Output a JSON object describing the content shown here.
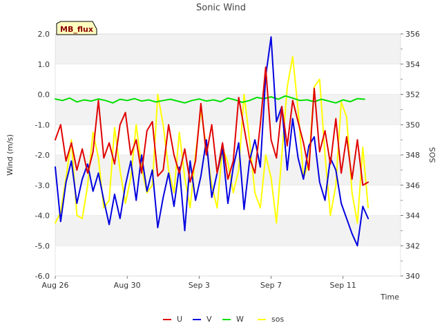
{
  "chart_data": {
    "type": "line",
    "title": "Sonic Wind",
    "badge": "MB_flux",
    "xlabel": "Time",
    "ylabel": "Wind (m/s)",
    "y2label": "SOS",
    "xlim": [
      0,
      19.2
    ],
    "ylim": [
      -6.0,
      2.0
    ],
    "y2lim": [
      340,
      356
    ],
    "x_ticks": [
      {
        "value": 0,
        "label": "Aug 26"
      },
      {
        "value": 4,
        "label": "Aug 30"
      },
      {
        "value": 8,
        "label": "Sep 3"
      },
      {
        "value": 12,
        "label": "Sep 7"
      },
      {
        "value": 16,
        "label": "Sep 11"
      }
    ],
    "y_ticks": [
      {
        "value": 2.0,
        "label": "2.0"
      },
      {
        "value": 1.0,
        "label": "1.0"
      },
      {
        "value": 0.0,
        "label": "0.0"
      },
      {
        "value": -1.0,
        "label": "-1.0"
      },
      {
        "value": -2.0,
        "label": "-2.0"
      },
      {
        "value": -3.0,
        "label": "-3.0"
      },
      {
        "value": -4.0,
        "label": "-4.0"
      },
      {
        "value": -5.0,
        "label": "-5.0"
      },
      {
        "value": -6.0,
        "label": "-6.0"
      }
    ],
    "y2_ticks": [
      {
        "value": 356,
        "label": "356"
      },
      {
        "value": 354,
        "label": "354"
      },
      {
        "value": 352,
        "label": "352"
      },
      {
        "value": 350,
        "label": "350"
      },
      {
        "value": 348,
        "label": "348"
      },
      {
        "value": 346,
        "label": "346"
      },
      {
        "value": 344,
        "label": "344"
      },
      {
        "value": 342,
        "label": "342"
      },
      {
        "value": 340,
        "label": "340"
      }
    ],
    "series": [
      {
        "name": "U",
        "color": "#e00000",
        "axis": "left",
        "x": [
          0.0,
          0.3,
          0.6,
          0.9,
          1.2,
          1.5,
          1.8,
          2.1,
          2.4,
          2.7,
          3.0,
          3.3,
          3.6,
          3.9,
          4.2,
          4.5,
          4.8,
          5.1,
          5.4,
          5.7,
          6.0,
          6.3,
          6.6,
          6.9,
          7.2,
          7.5,
          7.8,
          8.1,
          8.4,
          8.7,
          9.0,
          9.3,
          9.6,
          9.9,
          10.2,
          10.5,
          10.8,
          11.1,
          11.4,
          11.7,
          12.0,
          12.3,
          12.6,
          12.9,
          13.2,
          13.5,
          13.8,
          14.1,
          14.4,
          14.7,
          15.0,
          15.3,
          15.6,
          15.9,
          16.2,
          16.5,
          16.8,
          17.1,
          17.4
        ],
        "values": [
          -1.5,
          -1.0,
          -2.2,
          -1.6,
          -2.5,
          -1.8,
          -2.6,
          -1.9,
          -0.2,
          -2.1,
          -1.6,
          -2.3,
          -1.0,
          -0.6,
          -2.0,
          -1.5,
          -2.6,
          -1.2,
          -0.9,
          -2.7,
          -2.5,
          -1.0,
          -2.0,
          -2.6,
          -1.8,
          -2.9,
          -2.2,
          -0.3,
          -2.0,
          -1.0,
          -2.6,
          -1.6,
          -2.8,
          -2.2,
          -0.1,
          -1.1,
          -2.1,
          -2.6,
          -1.0,
          0.9,
          -1.5,
          -2.1,
          -0.4,
          -1.7,
          -0.2,
          -0.9,
          -1.6,
          -2.5,
          0.2,
          -1.9,
          -1.2,
          -2.3,
          -0.8,
          -2.6,
          -1.4,
          -2.8,
          -1.5,
          -3.0,
          -2.9
        ]
      },
      {
        "name": "V",
        "color": "#0000e0",
        "axis": "left",
        "x": [
          0.0,
          0.3,
          0.6,
          0.9,
          1.2,
          1.5,
          1.8,
          2.1,
          2.4,
          2.7,
          3.0,
          3.3,
          3.6,
          3.9,
          4.2,
          4.5,
          4.8,
          5.1,
          5.4,
          5.7,
          6.0,
          6.3,
          6.6,
          6.9,
          7.2,
          7.5,
          7.8,
          8.1,
          8.4,
          8.7,
          9.0,
          9.3,
          9.6,
          9.9,
          10.2,
          10.5,
          10.8,
          11.1,
          11.4,
          11.7,
          12.0,
          12.3,
          12.6,
          12.9,
          13.2,
          13.5,
          13.8,
          14.1,
          14.4,
          14.7,
          15.0,
          15.3,
          15.6,
          15.9,
          16.2,
          16.5,
          16.8,
          17.1,
          17.4
        ],
        "values": [
          -2.4,
          -4.2,
          -2.9,
          -2.2,
          -3.6,
          -2.8,
          -2.3,
          -3.2,
          -2.6,
          -3.5,
          -4.3,
          -3.3,
          -4.1,
          -3.0,
          -2.2,
          -3.5,
          -2.0,
          -3.2,
          -2.5,
          -4.4,
          -3.4,
          -2.6,
          -3.7,
          -2.4,
          -4.5,
          -2.2,
          -3.5,
          -2.7,
          -1.5,
          -3.4,
          -2.6,
          -1.8,
          -3.6,
          -2.4,
          -1.6,
          -3.8,
          -2.2,
          -1.5,
          -2.4,
          0.6,
          1.9,
          -0.9,
          -0.4,
          -2.5,
          -0.8,
          -2.1,
          -2.8,
          -1.7,
          -1.4,
          -2.9,
          -3.5,
          -2.1,
          -2.5,
          -3.6,
          -4.1,
          -4.6,
          -5.0,
          -3.7,
          -4.1
        ]
      },
      {
        "name": "W",
        "color": "#00e000",
        "axis": "left",
        "x": [
          0.0,
          0.4,
          0.8,
          1.2,
          1.6,
          2.0,
          2.4,
          2.8,
          3.2,
          3.6,
          4.0,
          4.4,
          4.8,
          5.2,
          5.6,
          6.0,
          6.4,
          6.8,
          7.2,
          7.6,
          8.0,
          8.4,
          8.8,
          9.2,
          9.6,
          10.0,
          10.4,
          10.8,
          11.2,
          11.6,
          12.0,
          12.4,
          12.8,
          13.2,
          13.6,
          14.0,
          14.4,
          14.8,
          15.2,
          15.6,
          16.0,
          16.4,
          16.8,
          17.2
        ],
        "values": [
          -0.15,
          -0.2,
          -0.12,
          -0.25,
          -0.18,
          -0.22,
          -0.15,
          -0.2,
          -0.28,
          -0.16,
          -0.2,
          -0.14,
          -0.22,
          -0.18,
          -0.25,
          -0.2,
          -0.16,
          -0.22,
          -0.28,
          -0.2,
          -0.15,
          -0.22,
          -0.18,
          -0.24,
          -0.12,
          -0.18,
          -0.26,
          -0.2,
          -0.1,
          -0.14,
          -0.08,
          -0.16,
          -0.05,
          -0.12,
          -0.2,
          -0.18,
          -0.24,
          -0.16,
          -0.22,
          -0.28,
          -0.18,
          -0.24,
          -0.14,
          -0.16
        ]
      },
      {
        "name": "sos",
        "color": "#ffff00",
        "axis": "right",
        "x": [
          0.0,
          0.3,
          0.6,
          0.9,
          1.2,
          1.5,
          1.8,
          2.1,
          2.4,
          2.7,
          3.0,
          3.3,
          3.6,
          3.9,
          4.2,
          4.5,
          4.8,
          5.1,
          5.4,
          5.7,
          6.0,
          6.3,
          6.6,
          6.9,
          7.2,
          7.5,
          7.8,
          8.1,
          8.4,
          8.7,
          9.0,
          9.3,
          9.6,
          9.9,
          10.2,
          10.5,
          10.8,
          11.1,
          11.4,
          11.7,
          12.0,
          12.3,
          12.6,
          12.9,
          13.2,
          13.5,
          13.8,
          14.1,
          14.4,
          14.7,
          15.0,
          15.3,
          15.6,
          15.9,
          16.2,
          16.5,
          16.8,
          17.1,
          17.4
        ],
        "values": [
          343.5,
          344.2,
          346.5,
          349.0,
          344.0,
          343.8,
          346.0,
          349.5,
          347.8,
          344.5,
          345.0,
          349.8,
          347.0,
          344.8,
          346.5,
          350.0,
          347.2,
          345.5,
          346.0,
          352.0,
          350.0,
          347.0,
          345.5,
          349.5,
          346.5,
          344.5,
          348.0,
          351.0,
          348.5,
          346.0,
          344.5,
          348.5,
          347.5,
          345.5,
          347.0,
          352.0,
          349.0,
          345.5,
          344.5,
          348.0,
          346.5,
          343.5,
          348.0,
          352.5,
          354.5,
          351.0,
          346.5,
          347.5,
          352.5,
          353.0,
          348.0,
          344.0,
          346.0,
          351.5,
          350.5,
          345.5,
          343.5,
          348.5,
          344.5
        ]
      }
    ],
    "legend_position": "bottom-center"
  }
}
